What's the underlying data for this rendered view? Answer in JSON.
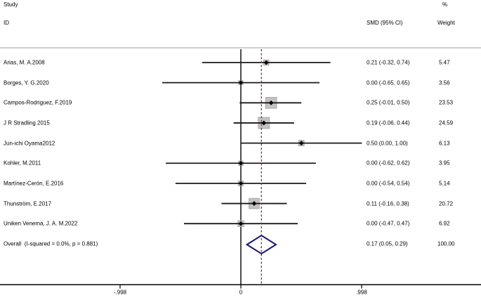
{
  "header": {
    "col_study_line1": "Study",
    "col_study_line2": "ID",
    "col_percent": "%",
    "col_smd": "SMD (95% CI)",
    "col_weight": "Weight"
  },
  "colors": {
    "axis": "#000000",
    "ci_line": "#1a1a1a",
    "marker_fill": "#c3c3c3",
    "marker_border": "#a8a8a8",
    "point": "#000000",
    "overall_dashed": "#953735",
    "diamond": "#17176b",
    "separator": "#cfcfcf"
  },
  "chart_data": {
    "type": "forest",
    "title": "",
    "xlabel": "",
    "ylabel": "",
    "x_range": [
      -1.99,
      1.98
    ],
    "grid": false,
    "zero_line": 0,
    "overall_line": 0.17,
    "x_ticks": [
      {
        "value": -0.998,
        "label": "-.998"
      },
      {
        "value": 0,
        "label": "0"
      },
      {
        "value": 0.998,
        "label": ".998"
      }
    ],
    "studies": [
      {
        "label": "Arias, M. A.2008",
        "smd": 0.21,
        "ci_low": -0.32,
        "ci_high": 0.74,
        "smd_text": "0.21 (-0.32, 0.74)",
        "weight": 5.47,
        "weight_text": "5.47"
      },
      {
        "label": "Borges, Y. G.2020",
        "smd": 0.0,
        "ci_low": -0.65,
        "ci_high": 0.65,
        "smd_text": "0.00 (-0.65, 0.65)",
        "weight": 3.56,
        "weight_text": "3.56"
      },
      {
        "label": "Campos-Rodriguez, F.2019",
        "smd": 0.25,
        "ci_low": -0.01,
        "ci_high": 0.5,
        "smd_text": "0.25 (-0.01, 0.50)",
        "weight": 23.53,
        "weight_text": "23.53"
      },
      {
        "label": "J R Stradling 2015",
        "smd": 0.19,
        "ci_low": -0.06,
        "ci_high": 0.44,
        "smd_text": "0.19 (-0.06, 0.44)",
        "weight": 24.59,
        "weight_text": "24.59"
      },
      {
        "label": "Jun-ichi Oyama2012",
        "smd": 0.5,
        "ci_low": 0.0,
        "ci_high": 1.0,
        "smd_text": "0.50 (0.00, 1.00)",
        "weight": 6.13,
        "weight_text": "6.13"
      },
      {
        "label": "Kohler, M.2011",
        "smd": 0.0,
        "ci_low": -0.62,
        "ci_high": 0.62,
        "smd_text": "0.00 (-0.62, 0.62)",
        "weight": 3.95,
        "weight_text": "3.95"
      },
      {
        "label": "Martínez-Cerón, E.2016",
        "smd": 0.0,
        "ci_low": -0.54,
        "ci_high": 0.54,
        "smd_text": "0.00 (-0.54, 0.54)",
        "weight": 5.14,
        "weight_text": "5.14"
      },
      {
        "label": "Thunström, E.2017",
        "smd": 0.11,
        "ci_low": -0.16,
        "ci_high": 0.38,
        "smd_text": "0.11 (-0.16, 0.38)",
        "weight": 20.72,
        "weight_text": "20.72"
      },
      {
        "label": "Uniken Venema, J. A. M.2022",
        "smd": 0.0,
        "ci_low": -0.47,
        "ci_high": 0.47,
        "smd_text": "0.00 (-0.47, 0.47)",
        "weight": 6.92,
        "weight_text": "6.92"
      }
    ],
    "overall": {
      "label": "Overall  (I-squared = 0.0%, p = 0.881)",
      "smd": 0.17,
      "ci_low": 0.05,
      "ci_high": 0.29,
      "smd_text": "0.17 (0.05, 0.29)",
      "weight_text": "100.00"
    }
  }
}
